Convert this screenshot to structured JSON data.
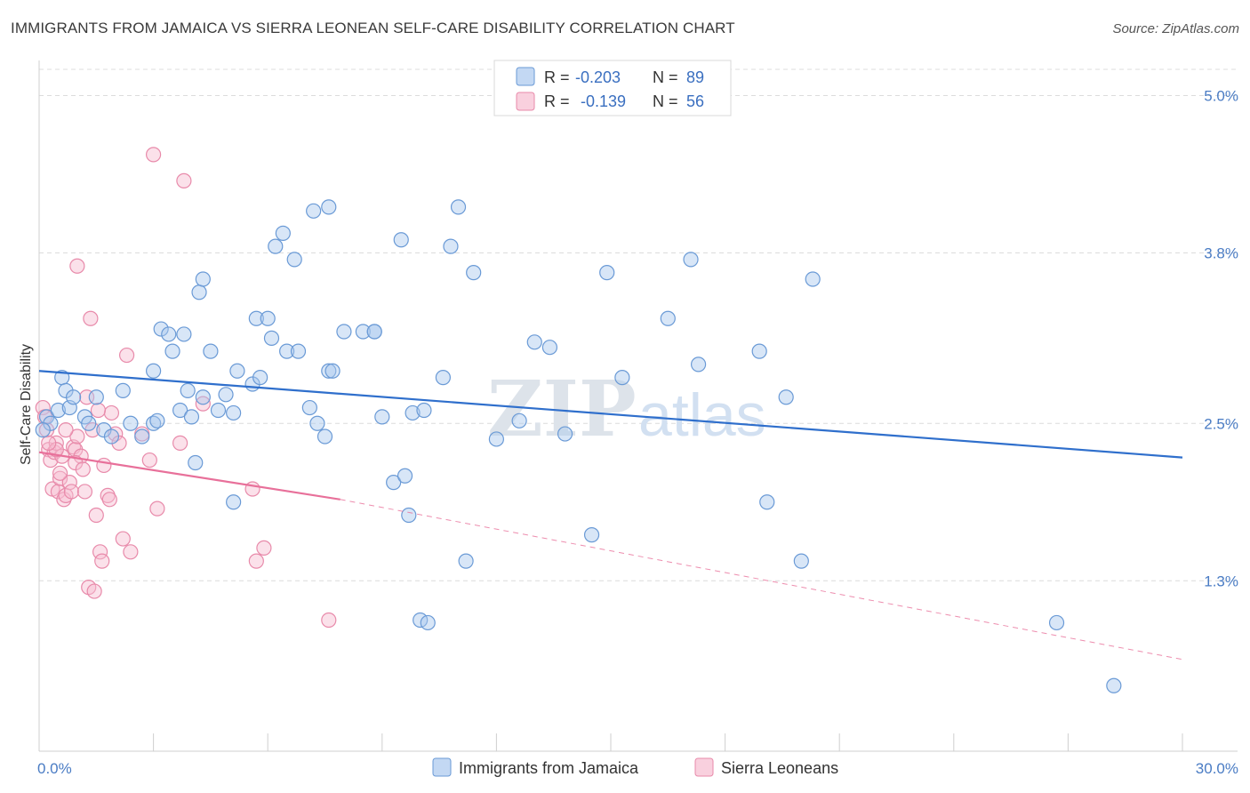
{
  "title": "IMMIGRANTS FROM JAMAICA VS SIERRA LEONEAN SELF-CARE DISABILITY CORRELATION CHART",
  "source": "Source: ZipAtlas.com",
  "watermark": {
    "zip": "ZIP",
    "atlas": "atlas"
  },
  "legend_top": {
    "r_label": "R =",
    "n_label": "N =",
    "rows": [
      {
        "r": "-0.203",
        "n": "89",
        "color": "#a9c8ee",
        "stroke": "#6a9ad6"
      },
      {
        "r": "-0.139",
        "n": "56",
        "color": "#f6bcd0",
        "stroke": "#e88aaa"
      }
    ]
  },
  "chart_data": {
    "type": "scatter",
    "title": "IMMIGRANTS FROM JAMAICA VS SIERRA LEONEAN SELF-CARE DISABILITY CORRELATION CHART",
    "xlabel": "",
    "ylabel": "Self-Care Disability",
    "xlim": [
      0,
      30
    ],
    "ylim": [
      0,
      5.2
    ],
    "x_tick_labels": [
      "0.0%",
      "30.0%"
    ],
    "y_ticks": [
      1.3,
      2.5,
      3.8,
      5.0
    ],
    "y_tick_labels": [
      "1.3%",
      "2.5%",
      "3.8%",
      "5.0%"
    ],
    "grid": true,
    "legend_position": "bottom",
    "series": [
      {
        "name": "Immigrants from Jamaica",
        "color": "#6a9ad6",
        "fill": "#a9c8ee",
        "trend": {
          "x": [
            0,
            30
          ],
          "y": [
            2.9,
            2.24
          ],
          "color": "#2f6fcc"
        },
        "points": [
          [
            0.2,
            2.55
          ],
          [
            0.3,
            2.5
          ],
          [
            0.5,
            2.6
          ],
          [
            0.6,
            2.85
          ],
          [
            0.7,
            2.75
          ],
          [
            0.8,
            2.62
          ],
          [
            0.9,
            2.7
          ],
          [
            1.2,
            2.55
          ],
          [
            1.3,
            2.5
          ],
          [
            1.5,
            2.7
          ],
          [
            1.7,
            2.45
          ],
          [
            1.9,
            2.4
          ],
          [
            2.2,
            2.75
          ],
          [
            2.4,
            2.5
          ],
          [
            2.7,
            2.4
          ],
          [
            3.0,
            2.5
          ],
          [
            3.1,
            2.52
          ],
          [
            3.0,
            2.9
          ],
          [
            3.7,
            2.6
          ],
          [
            3.9,
            2.75
          ],
          [
            4.0,
            2.55
          ],
          [
            4.1,
            2.2
          ],
          [
            4.3,
            2.7
          ],
          [
            4.7,
            2.6
          ],
          [
            4.9,
            2.72
          ],
          [
            5.1,
            2.58
          ],
          [
            5.2,
            2.9
          ],
          [
            5.6,
            2.8
          ],
          [
            5.8,
            2.85
          ],
          [
            6.1,
            3.15
          ],
          [
            6.5,
            3.05
          ],
          [
            6.8,
            3.05
          ],
          [
            7.1,
            2.62
          ],
          [
            7.3,
            2.5
          ],
          [
            7.5,
            2.4
          ],
          [
            7.6,
            2.9
          ],
          [
            7.7,
            2.9
          ],
          [
            8.0,
            3.2
          ],
          [
            8.5,
            3.2
          ],
          [
            8.8,
            3.2
          ],
          [
            8.8,
            3.2
          ],
          [
            9.0,
            2.55
          ],
          [
            9.3,
            2.05
          ],
          [
            9.5,
            3.9
          ],
          [
            9.8,
            2.58
          ],
          [
            10.1,
            2.6
          ],
          [
            10.6,
            2.85
          ],
          [
            11.0,
            4.15
          ],
          [
            11.4,
            3.65
          ],
          [
            12.0,
            2.38
          ],
          [
            12.6,
            2.52
          ],
          [
            13.0,
            3.12
          ],
          [
            13.4,
            3.08
          ],
          [
            13.8,
            2.42
          ],
          [
            14.9,
            3.65
          ],
          [
            15.3,
            2.85
          ],
          [
            16.5,
            3.3
          ],
          [
            17.1,
            3.75
          ],
          [
            17.3,
            2.95
          ],
          [
            18.9,
            3.05
          ],
          [
            19.6,
            2.7
          ],
          [
            20.3,
            3.6
          ],
          [
            3.2,
            3.22
          ],
          [
            3.4,
            3.18
          ],
          [
            3.5,
            3.05
          ],
          [
            3.8,
            3.18
          ],
          [
            4.2,
            3.5
          ],
          [
            4.3,
            3.6
          ],
          [
            4.5,
            3.05
          ],
          [
            5.7,
            3.3
          ],
          [
            6.0,
            3.3
          ],
          [
            6.2,
            3.85
          ],
          [
            6.4,
            3.95
          ],
          [
            6.7,
            3.75
          ],
          [
            7.2,
            4.12
          ],
          [
            7.6,
            4.15
          ],
          [
            10.8,
            3.85
          ],
          [
            11.2,
            1.45
          ],
          [
            9.6,
            2.1
          ],
          [
            9.7,
            1.8
          ],
          [
            10.0,
            1.0
          ],
          [
            10.2,
            0.98
          ],
          [
            14.5,
            1.65
          ],
          [
            19.1,
            1.9
          ],
          [
            20.0,
            1.45
          ],
          [
            26.7,
            0.98
          ],
          [
            28.2,
            0.5
          ],
          [
            0.1,
            2.45
          ],
          [
            5.1,
            1.9
          ]
        ]
      },
      {
        "name": "Sierra Leoneans",
        "color": "#e88aaa",
        "fill": "#f6bcd0",
        "trend": {
          "x": [
            0,
            7.9
          ],
          "y": [
            2.28,
            1.92
          ],
          "color": "#e8709a"
        },
        "trend_extension": {
          "x": [
            7.9,
            30
          ],
          "y": [
            1.92,
            0.7
          ]
        },
        "points": [
          [
            0.1,
            2.62
          ],
          [
            0.15,
            2.55
          ],
          [
            0.2,
            2.45
          ],
          [
            0.25,
            2.3
          ],
          [
            0.3,
            2.22
          ],
          [
            0.35,
            2.0
          ],
          [
            0.4,
            2.28
          ],
          [
            0.45,
            2.35
          ],
          [
            0.5,
            1.98
          ],
          [
            0.55,
            2.08
          ],
          [
            0.6,
            2.25
          ],
          [
            0.65,
            1.92
          ],
          [
            0.7,
            1.95
          ],
          [
            0.8,
            2.05
          ],
          [
            0.85,
            1.98
          ],
          [
            0.9,
            2.32
          ],
          [
            0.95,
            2.3
          ],
          [
            1.0,
            2.4
          ],
          [
            1.1,
            2.25
          ],
          [
            1.2,
            1.98
          ],
          [
            1.3,
            1.25
          ],
          [
            1.35,
            3.3
          ],
          [
            1.4,
            2.45
          ],
          [
            1.5,
            1.8
          ],
          [
            1.6,
            1.52
          ],
          [
            1.65,
            1.45
          ],
          [
            1.7,
            2.18
          ],
          [
            1.8,
            1.95
          ],
          [
            1.85,
            1.92
          ],
          [
            1.9,
            2.58
          ],
          [
            2.0,
            2.42
          ],
          [
            2.1,
            2.35
          ],
          [
            2.2,
            1.62
          ],
          [
            2.3,
            3.02
          ],
          [
            2.4,
            1.52
          ],
          [
            2.7,
            2.42
          ],
          [
            2.9,
            2.22
          ],
          [
            3.0,
            4.55
          ],
          [
            3.1,
            1.85
          ],
          [
            3.7,
            2.35
          ],
          [
            3.8,
            4.35
          ],
          [
            4.3,
            2.65
          ],
          [
            5.6,
            2.0
          ],
          [
            5.7,
            1.45
          ],
          [
            5.9,
            1.55
          ],
          [
            7.6,
            1.0
          ],
          [
            1.0,
            3.7
          ],
          [
            1.25,
            2.7
          ],
          [
            1.45,
            1.22
          ],
          [
            0.45,
            2.3
          ],
          [
            0.25,
            2.35
          ],
          [
            0.55,
            2.12
          ],
          [
            0.7,
            2.45
          ],
          [
            0.95,
            2.2
          ],
          [
            1.15,
            2.15
          ],
          [
            1.55,
            2.6
          ]
        ]
      }
    ]
  }
}
